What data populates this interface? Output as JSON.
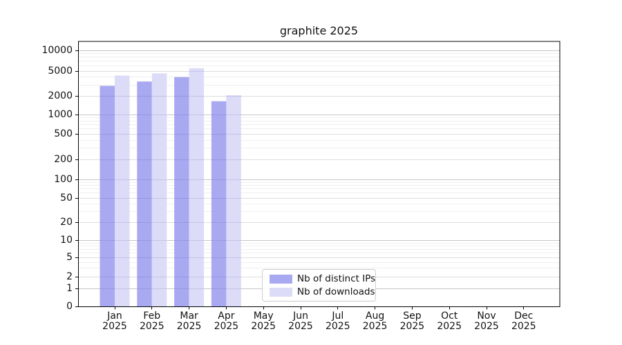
{
  "window": {
    "background": "#ffffff"
  },
  "chart_data": {
    "type": "bar",
    "title": "graphite 2025",
    "categories": [
      "Jan",
      "Feb",
      "Mar",
      "Apr",
      "May",
      "Jun",
      "Jul",
      "Aug",
      "Sep",
      "Oct",
      "Nov",
      "Dec"
    ],
    "year_label": "2025",
    "series": [
      {
        "name": "Nb of distinct IPs",
        "color": "#a9a9f2",
        "values": [
          2900,
          3400,
          4000,
          1650,
          null,
          null,
          null,
          null,
          null,
          null,
          null,
          null
        ]
      },
      {
        "name": "Nb of downloads",
        "color": "#dcdcf8",
        "values": [
          4250,
          4600,
          5500,
          2050,
          null,
          null,
          null,
          null,
          null,
          null,
          null,
          null
        ]
      }
    ],
    "y_ticks": [
      0,
      1,
      2,
      5,
      10,
      20,
      50,
      100,
      200,
      500,
      1000,
      2000,
      5000,
      10000
    ],
    "y_scale": "symlog",
    "ylim": [
      0,
      14000
    ],
    "grid": true,
    "legend_position": "lower center",
    "colors": {
      "axis": "#000000",
      "text": "#111111",
      "grid_decade": "#c6c6c6",
      "grid_labeled": "#dddddd",
      "grid_minor": "#efefef",
      "legend_border": "#cccccc"
    }
  }
}
